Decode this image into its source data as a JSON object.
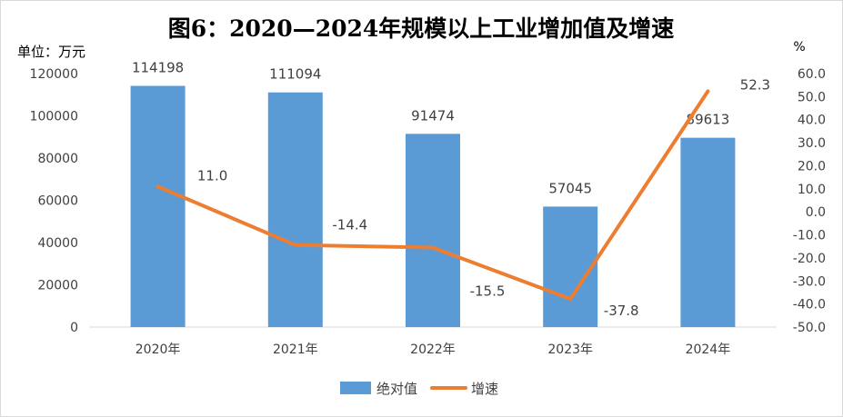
{
  "chart_data": {
    "type": "bar",
    "title": "图6：2020—2024年规模以上工业增加值及增速",
    "left_axis_label": "单位：万元",
    "right_axis_label": "%",
    "categories": [
      "2020年",
      "2021年",
      "2022年",
      "2023年",
      "2024年"
    ],
    "series": [
      {
        "name": "绝对值",
        "kind": "bar",
        "axis": "left",
        "values": [
          114198,
          111094,
          91474,
          57045,
          89613
        ],
        "labels": [
          "114198",
          "111094",
          "91474",
          "57045",
          "89613"
        ]
      },
      {
        "name": "增速",
        "kind": "line",
        "axis": "right",
        "values": [
          11.0,
          -14.4,
          -15.5,
          -37.8,
          52.3
        ],
        "labels": [
          "11.0",
          "-14.4",
          "-15.5",
          "-37.8",
          "52.3"
        ]
      }
    ],
    "left_axis": {
      "ylim": [
        0,
        120000
      ],
      "ticks": [
        "0",
        "20000",
        "40000",
        "60000",
        "80000",
        "100000",
        "120000"
      ]
    },
    "right_axis": {
      "ylim": [
        -50,
        60
      ],
      "ticks": [
        "-50.0",
        "-40.0",
        "-30.0",
        "-20.0",
        "-10.0",
        "0.0",
        "10.0",
        "20.0",
        "30.0",
        "40.0",
        "50.0",
        "60.0"
      ]
    },
    "grid": false,
    "legend_position": "bottom-center",
    "colors": {
      "bar": "#5b9bd5",
      "line": "#ed7d31",
      "text": "#404040",
      "title": "#000000",
      "axis_line": "#d9d9d9"
    }
  }
}
